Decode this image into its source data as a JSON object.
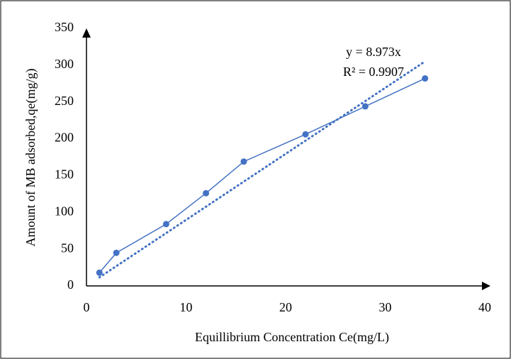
{
  "chart_data": {
    "type": "line",
    "x_label": "Equillibrium Concentration Ce(mg/L)",
    "y_label": "Amount of MB adsorbed,qe(mg/g)",
    "series": [
      {
        "color": "#4472c4",
        "x": [
          1.3,
          3,
          8,
          12,
          15.8,
          22,
          28,
          34
        ],
        "values": [
          18,
          45,
          84,
          126,
          169,
          206,
          244,
          282
        ]
      }
    ],
    "trendline": {
      "slope": 8.973,
      "equation": "y = 8.973x",
      "r_squared": "R² = 0.9907",
      "style": "dotted"
    },
    "xlim": [
      0,
      40
    ],
    "xticks": [
      0,
      10,
      20,
      30,
      40
    ],
    "ylim": [
      0,
      350
    ],
    "yticks": [
      0,
      50,
      100,
      150,
      200,
      250,
      300,
      350
    ],
    "grid": false
  }
}
